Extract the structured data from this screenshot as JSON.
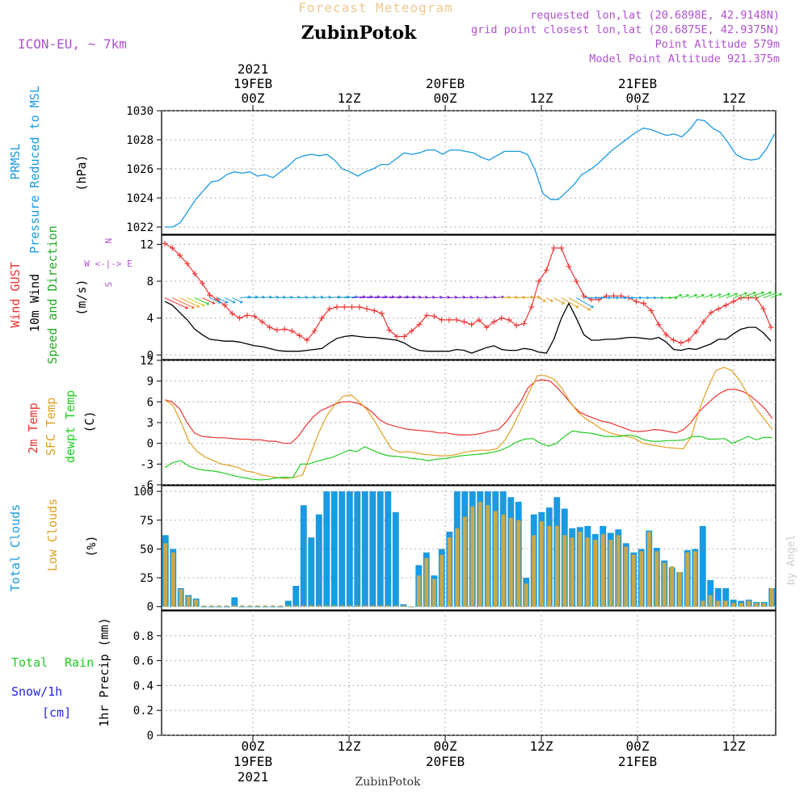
{
  "header": {
    "supertitle": "Forecast Meteogram",
    "location": "ZubinPotok",
    "model": "ICON-EU, ~ 7km",
    "requested": "requested lon,lat (20.6898E, 42.9148N)",
    "closest": "grid point closest lon,lat (20.6875E, 42.9375N)",
    "point_alt": "Point Altitude 579m",
    "model_alt": "Model Point Altitude 921.375m",
    "credit": "by Angel",
    "bottom_label": "ZubinPotok"
  },
  "time_axis": {
    "top": [
      {
        "label": "00Z",
        "day": "19FEB",
        "year": "2021"
      },
      {
        "label": "12Z",
        "day": "",
        "year": ""
      },
      {
        "label": "00Z",
        "day": "20FEB",
        "year": ""
      },
      {
        "label": "12Z",
        "day": "",
        "year": ""
      },
      {
        "label": "00Z",
        "day": "21FEB",
        "year": ""
      },
      {
        "label": "12Z",
        "day": "",
        "year": ""
      }
    ],
    "bottom": [
      {
        "label": "00Z",
        "day": "19FEB",
        "year": "2021"
      },
      {
        "label": "12Z",
        "day": "",
        "year": ""
      },
      {
        "label": "00Z",
        "day": "20FEB",
        "year": ""
      },
      {
        "label": "12Z",
        "day": "",
        "year": ""
      },
      {
        "label": "00Z",
        "day": "21FEB",
        "year": ""
      },
      {
        "label": "12Z",
        "day": "",
        "year": ""
      }
    ]
  },
  "panel_labels": {
    "pressure": {
      "l1": "PRMSL",
      "l2": "Pressure Reduced to MSL",
      "unit": "(hPa)"
    },
    "wind": {
      "l1": "Wind GUST",
      "l2": "10m Wind",
      "l3": "Speed and Direction",
      "unit": "(m/s)",
      "compass_n": "N",
      "compass_s": "S",
      "compass_we": "W <-|-> E",
      "compass_arrows_v": "^ |  v"
    },
    "temp": {
      "l1": "2m Temp",
      "l2": "SFC Temp",
      "l3": "dewpt Temp",
      "unit": "(C)"
    },
    "cloud": {
      "l1": "Total Clouds",
      "l2": "Low Clouds",
      "unit": "(%)"
    },
    "precip": {
      "l1": "Total",
      "l1b": "Rain",
      "l2": "Snow/1h",
      "l3": "[cm]",
      "unit": "1hr Precip (mm)"
    }
  },
  "colors": {
    "pressure": "#1a9ae0",
    "gust": "#ee3333",
    "wind": "#000000",
    "t2m": "#ee3333",
    "tsfc": "#e0a020",
    "dewpt": "#22cc22",
    "total_cloud": "#1a9ae0",
    "low_cloud": "#c8a84a",
    "rain": "#22cc22",
    "snow": "#2222ee",
    "meta": "#b050d0",
    "supertitle": "#f0c890"
  },
  "chart_data": [
    {
      "type": "line",
      "title": "PRMSL Pressure Reduced to MSL",
      "ylabel": "(hPa)",
      "ylim": [
        1021.5,
        1030
      ],
      "yticks": [
        1022,
        1024,
        1026,
        1028,
        1030
      ],
      "x_hours": "hours since 2021-02-18 15Z",
      "series": [
        {
          "name": "PRMSL",
          "x": [
            0,
            1,
            2,
            3,
            4,
            5,
            6,
            7,
            8,
            9,
            10,
            11,
            12,
            13,
            14,
            15,
            16,
            17,
            18,
            19,
            20,
            21,
            22,
            23,
            24,
            25,
            26,
            27,
            28,
            29,
            30,
            31,
            32,
            33,
            34,
            35,
            36,
            37,
            38,
            39,
            40,
            41,
            42,
            43,
            44,
            45,
            46,
            47,
            48,
            49,
            50,
            51,
            52,
            53,
            54,
            55,
            56,
            57,
            58,
            59,
            60,
            61,
            62,
            63,
            64,
            65,
            66,
            67,
            68,
            69,
            70,
            71,
            72,
            73,
            74,
            75,
            76,
            77
          ],
          "values": [
            1022.0,
            1022.0,
            1022.3,
            1023.1,
            1023.9,
            1024.5,
            1025.1,
            1025.2,
            1025.6,
            1025.8,
            1025.7,
            1025.8,
            1025.5,
            1025.6,
            1025.4,
            1025.8,
            1026.2,
            1026.7,
            1026.9,
            1027.0,
            1026.9,
            1027.0,
            1026.6,
            1026.0,
            1025.8,
            1025.5,
            1025.8,
            1026.0,
            1026.3,
            1026.3,
            1026.7,
            1027.1,
            1027.0,
            1027.1,
            1027.3,
            1027.3,
            1027.0,
            1027.3,
            1027.3,
            1027.2,
            1027.1,
            1026.8,
            1026.6,
            1026.9,
            1027.2,
            1027.2,
            1027.2,
            1027.0,
            1025.9,
            1024.3,
            1023.9,
            1023.9,
            1024.4,
            1024.9,
            1025.6,
            1025.9,
            1026.3,
            1026.8,
            1027.3,
            1027.7,
            1028.1,
            1028.5,
            1028.8,
            1028.7,
            1028.5,
            1028.3,
            1028.4,
            1028.2,
            1028.7,
            1029.4,
            1029.3,
            1028.8,
            1028.5,
            1027.8,
            1027.0,
            1026.7,
            1026.6,
            1026.7
          ],
          "extra": [
            {
              "x": 78,
              "y": 1027.4
            },
            {
              "x": 79,
              "y": 1028.4
            }
          ]
        }
      ]
    },
    {
      "type": "line",
      "title": "Wind GUST / 10m Wind Speed and Direction",
      "ylabel": "(m/s)",
      "ylim": [
        -0.5,
        13
      ],
      "yticks": [
        0,
        4,
        8,
        12
      ],
      "series": [
        {
          "name": "Wind GUST",
          "values": [
            12.1,
            11.6,
            10.8,
            9.9,
            8.8,
            7.8,
            6.5,
            6.0,
            5.4,
            4.5,
            4.0,
            4.3,
            4.2,
            3.6,
            3.0,
            2.7,
            2.8,
            2.6,
            2.1,
            1.6,
            2.6,
            4.0,
            5.0,
            5.2,
            5.2,
            5.2,
            5.2,
            5.0,
            4.8,
            4.5,
            2.7,
            2.0,
            2.0,
            2.6,
            3.3,
            4.3,
            4.2,
            3.8,
            3.8,
            3.8,
            3.6,
            3.3,
            3.8,
            3.0,
            3.6,
            4.0,
            3.8,
            3.2,
            3.4,
            5.2,
            8.0,
            9.2,
            11.6,
            11.6,
            9.6,
            8.0,
            6.4,
            6.0,
            6.0,
            6.4,
            6.4,
            6.4,
            6.2,
            5.8,
            5.6,
            4.8,
            3.3,
            2.2,
            1.6,
            1.3,
            1.6,
            2.5,
            3.6,
            4.6,
            5.0,
            5.4,
            5.8,
            6.2,
            6.2,
            6.2,
            5.0,
            3.0
          ]
        },
        {
          "name": "10m Wind",
          "values": [
            5.8,
            5.4,
            4.6,
            3.8,
            2.8,
            2.2,
            1.7,
            1.6,
            1.5,
            1.5,
            1.4,
            1.2,
            1.0,
            0.9,
            0.7,
            0.5,
            0.4,
            0.4,
            0.4,
            0.5,
            0.6,
            0.7,
            1.3,
            1.8,
            2.0,
            2.1,
            2.0,
            1.9,
            1.9,
            1.8,
            1.7,
            1.6,
            1.3,
            0.8,
            0.5,
            0.4,
            0.4,
            0.4,
            0.4,
            0.6,
            0.5,
            0.2,
            0.5,
            0.8,
            1.0,
            0.6,
            0.5,
            0.5,
            0.7,
            0.6,
            0.3,
            0.2,
            1.7,
            4.0,
            5.6,
            4.0,
            2.2,
            1.6,
            1.6,
            1.7,
            1.7,
            1.8,
            1.9,
            1.9,
            1.8,
            1.7,
            1.9,
            1.4,
            0.6,
            0.5,
            0.7,
            0.6,
            0.9,
            1.2,
            1.7,
            1.7,
            2.3,
            2.8,
            3.0,
            3.0,
            2.4,
            1.5
          ]
        }
      ]
    },
    {
      "type": "line",
      "title": "2m Temp / SFC Temp / dewpt Temp",
      "ylabel": "(C)",
      "ylim": [
        -6,
        12
      ],
      "yticks": [
        -6,
        -3,
        0,
        3,
        6,
        9,
        12
      ],
      "series": [
        {
          "name": "2m Temp",
          "values": [
            6.3,
            6.0,
            5.0,
            3.0,
            1.5,
            1.0,
            0.9,
            0.8,
            0.8,
            0.7,
            0.6,
            0.6,
            0.5,
            0.5,
            0.3,
            0.3,
            0.0,
            0.0,
            1.0,
            2.5,
            3.8,
            4.7,
            5.2,
            5.7,
            6.0,
            6.0,
            5.8,
            5.3,
            4.5,
            3.4,
            2.8,
            2.5,
            2.2,
            2.0,
            1.9,
            1.8,
            1.7,
            1.5,
            1.5,
            1.3,
            1.2,
            1.2,
            1.3,
            1.5,
            1.8,
            2.0,
            3.0,
            4.5,
            6.0,
            8.0,
            9.0,
            9.2,
            9.0,
            8.0,
            6.8,
            5.5,
            4.5,
            4.0,
            3.6,
            3.2,
            3.0,
            2.6,
            2.2,
            1.8,
            1.7,
            1.8,
            2.0,
            1.9,
            1.7,
            1.5,
            2.0,
            3.0,
            4.5,
            5.5,
            6.5,
            7.3,
            7.8,
            7.8,
            7.5,
            6.9,
            6.0,
            5.0,
            3.6
          ]
        },
        {
          "name": "SFC Temp",
          "values": [
            6.3,
            5.5,
            3.0,
            0.2,
            -1.2,
            -2.0,
            -2.5,
            -3.0,
            -3.2,
            -3.5,
            -4.0,
            -4.2,
            -4.6,
            -4.8,
            -5.0,
            -5.1,
            -4.9,
            -4.6,
            -1.5,
            1.5,
            4.0,
            5.6,
            6.8,
            7.0,
            6.0,
            4.8,
            3.0,
            1.0,
            -0.8,
            -1.3,
            -1.2,
            -1.4,
            -1.6,
            -1.7,
            -1.8,
            -1.8,
            -1.6,
            -1.3,
            -1.1,
            -1.0,
            -1.0,
            -0.8,
            0.5,
            2.5,
            5.0,
            7.5,
            9.8,
            9.8,
            9.3,
            8.0,
            6.0,
            4.5,
            3.5,
            2.8,
            2.0,
            1.5,
            1.2,
            1.0,
            0.7,
            0.0,
            -0.2,
            -0.4,
            -0.6,
            -0.7,
            -0.8,
            1.0,
            5.0,
            8.0,
            10.5,
            11.0,
            10.5,
            9.0,
            7.0,
            5.0,
            3.5,
            2.0
          ]
        },
        {
          "name": "dewpt Temp",
          "values": [
            -3.5,
            -2.8,
            -2.5,
            -3.3,
            -3.7,
            -3.9,
            -4.0,
            -4.2,
            -4.5,
            -4.8,
            -5.0,
            -5.2,
            -5.3,
            -5.2,
            -5.0,
            -4.9,
            -5.0,
            -3.0,
            -3.0,
            -2.6,
            -2.3,
            -2.0,
            -1.5,
            -1.0,
            -1.2,
            -0.5,
            -1.0,
            -1.5,
            -1.8,
            -1.9,
            -2.0,
            -2.2,
            -2.3,
            -2.5,
            -2.3,
            -2.2,
            -2.0,
            -1.8,
            -1.7,
            -1.6,
            -1.5,
            -1.3,
            -1.0,
            -0.5,
            0.2,
            0.6,
            0.7,
            0.0,
            -0.4,
            0.0,
            1.0,
            1.8,
            1.6,
            1.5,
            1.3,
            1.0,
            1.0,
            1.0,
            1.2,
            1.0,
            0.5,
            0.3,
            0.3,
            0.4,
            0.4,
            0.5,
            1.0,
            1.0,
            0.6,
            0.6,
            0.7,
            0.0,
            0.5,
            1.0,
            0.5,
            0.9,
            0.8
          ]
        }
      ]
    },
    {
      "type": "bar",
      "title": "Total Clouds / Low Clouds",
      "ylabel": "(%)",
      "ylim": [
        -3,
        105
      ],
      "yticks": [
        0,
        25,
        50,
        75,
        100
      ],
      "series": [
        {
          "name": "Total Clouds",
          "values": [
            62,
            50,
            16,
            10,
            7,
            0,
            0,
            0,
            0,
            8,
            0,
            0,
            0,
            0,
            0,
            0,
            5,
            18,
            88,
            60,
            80,
            100,
            100,
            100,
            100,
            100,
            100,
            100,
            100,
            100,
            82,
            2,
            0,
            36,
            47,
            27,
            50,
            65,
            100,
            100,
            100,
            100,
            100,
            100,
            100,
            95,
            91,
            25,
            80,
            82,
            86,
            95,
            85,
            68,
            69,
            70,
            63,
            70,
            64,
            67,
            55,
            47,
            50,
            66,
            51,
            40,
            34,
            30,
            49,
            50,
            70,
            23,
            16,
            16,
            6,
            5,
            6,
            4,
            4,
            16
          ]
        },
        {
          "name": "Low Clouds",
          "values": [
            55,
            47,
            15,
            9,
            6,
            1,
            1,
            1,
            1,
            1,
            1,
            1,
            1,
            1,
            1,
            1,
            1,
            1,
            1,
            1,
            1,
            1,
            1,
            1,
            1,
            1,
            1,
            1,
            1,
            1,
            1,
            1,
            0,
            27,
            42,
            24,
            45,
            60,
            68,
            78,
            87,
            91,
            88,
            83,
            80,
            77,
            75,
            20,
            62,
            74,
            70,
            70,
            62,
            60,
            65,
            60,
            58,
            63,
            58,
            62,
            52,
            45,
            48,
            65,
            48,
            38,
            35,
            30,
            47,
            48,
            5,
            10,
            5,
            5,
            3,
            3,
            5,
            3,
            3,
            16
          ]
        }
      ]
    },
    {
      "type": "line",
      "title": "1hr Precip",
      "ylabel": "1hr Precip (mm)",
      "ylim": [
        0,
        1.0
      ],
      "yticks": [
        0,
        0.2,
        0.4,
        0.6,
        0.8
      ],
      "series": [
        {
          "name": "Total Rain",
          "values": []
        },
        {
          "name": "Snow/1h",
          "values": []
        }
      ]
    }
  ]
}
